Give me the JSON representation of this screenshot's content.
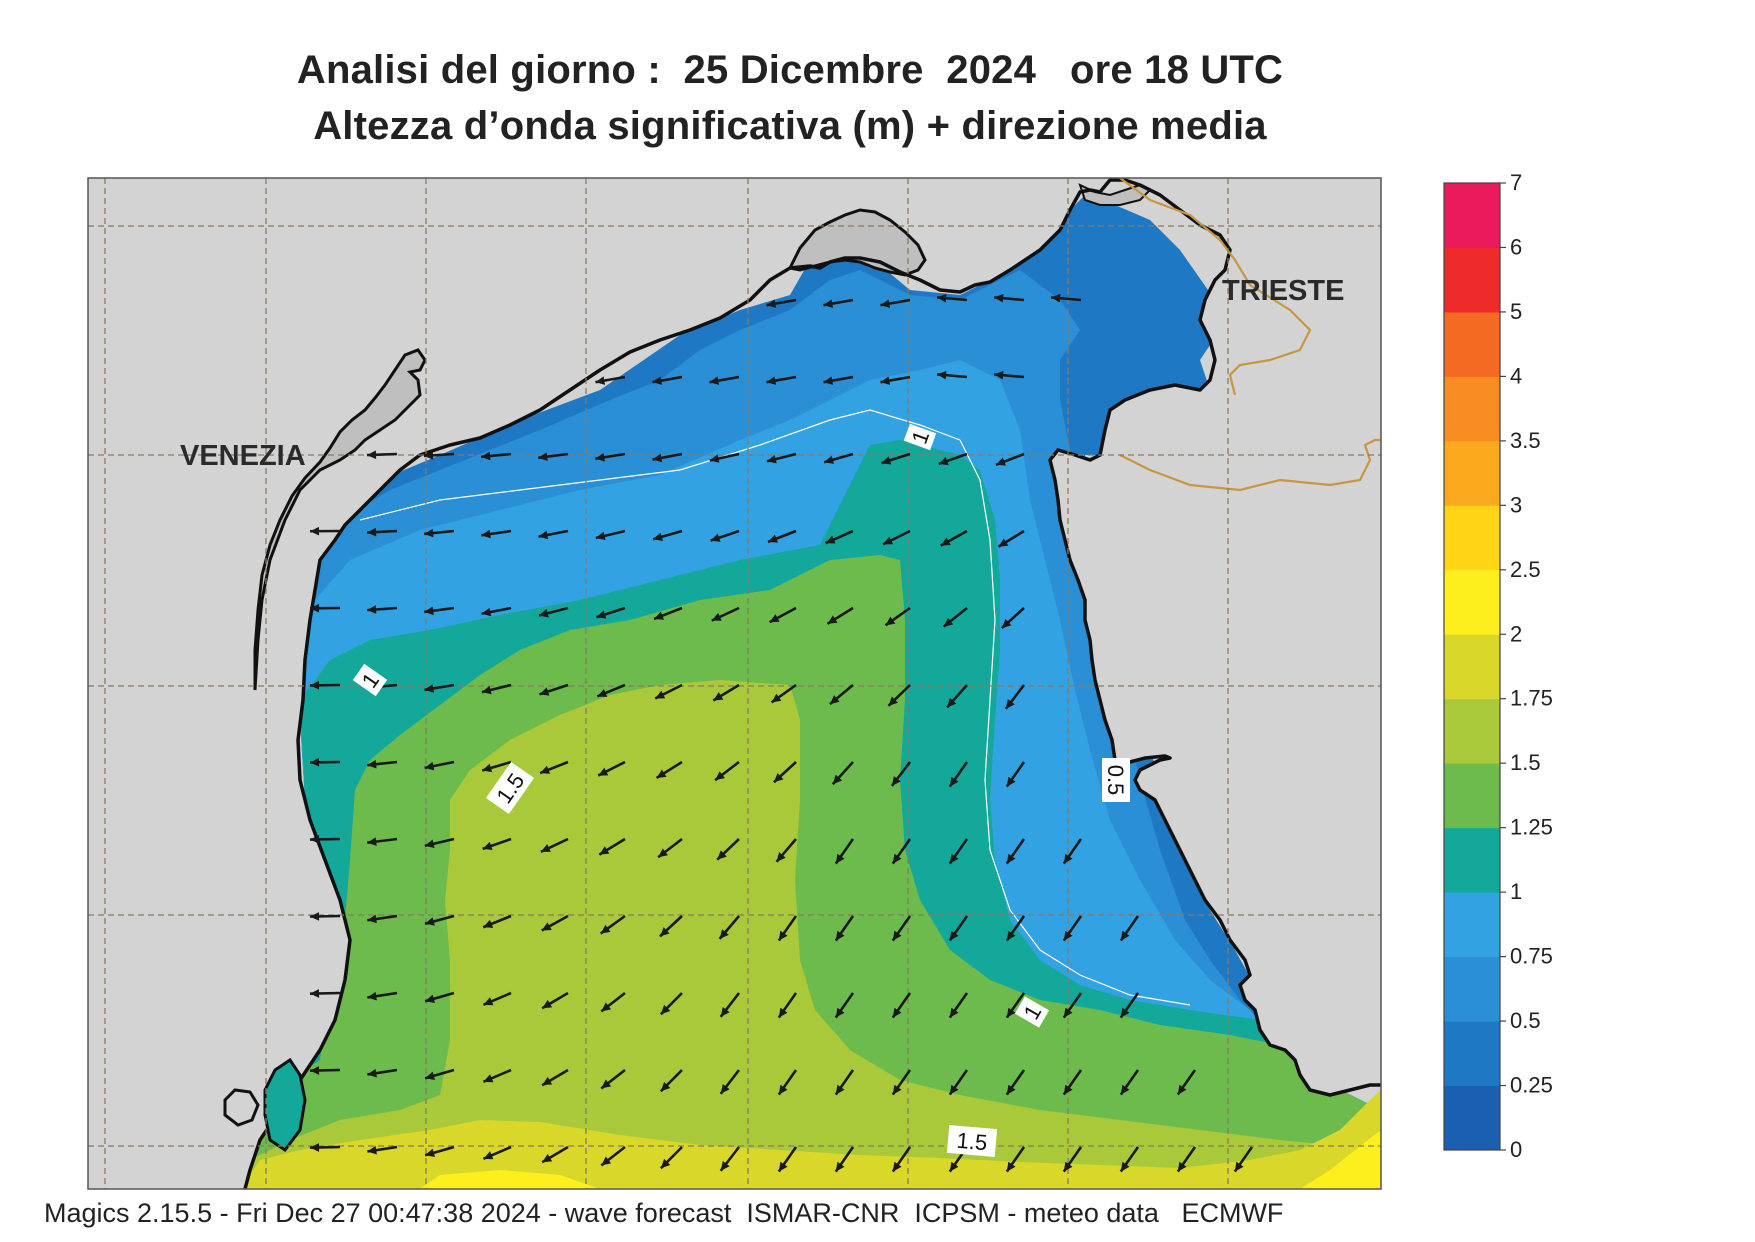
{
  "title_line1": "Analisi del giorno :  25 Dicembre  2024   ore 18 UTC",
  "title_line2": "Altezza d’onda significativa (m) + direzione media",
  "places": {
    "venezia": "VENEZIA",
    "trieste": "TRIESTE"
  },
  "contour_labels": [
    "1",
    "1",
    "1.5",
    "0.5",
    "1",
    "1.5"
  ],
  "colorbar": {
    "ticks": [
      "0",
      "0.25",
      "0.5",
      "0.75",
      "1",
      "1.25",
      "1.5",
      "1.75",
      "2",
      "2.5",
      "3",
      "3.5",
      "4",
      "5",
      "6",
      "7"
    ],
    "colors": [
      "#1a5fb0",
      "#1f78c4",
      "#2b8fd6",
      "#33a2e2",
      "#14a89a",
      "#6cbb4c",
      "#a9c93a",
      "#d9d72a",
      "#fdef1d",
      "#ffd515",
      "#fbaa1e",
      "#f78c22",
      "#f46a22",
      "#ee2a2a",
      "#ea1a5d"
    ]
  },
  "footer": "Magics 2.15.5 - Fri Dec 27 00:47:38 2024 - wave forecast  ISMAR-CNR  ICPSM - meteo data   ECMWF"
}
